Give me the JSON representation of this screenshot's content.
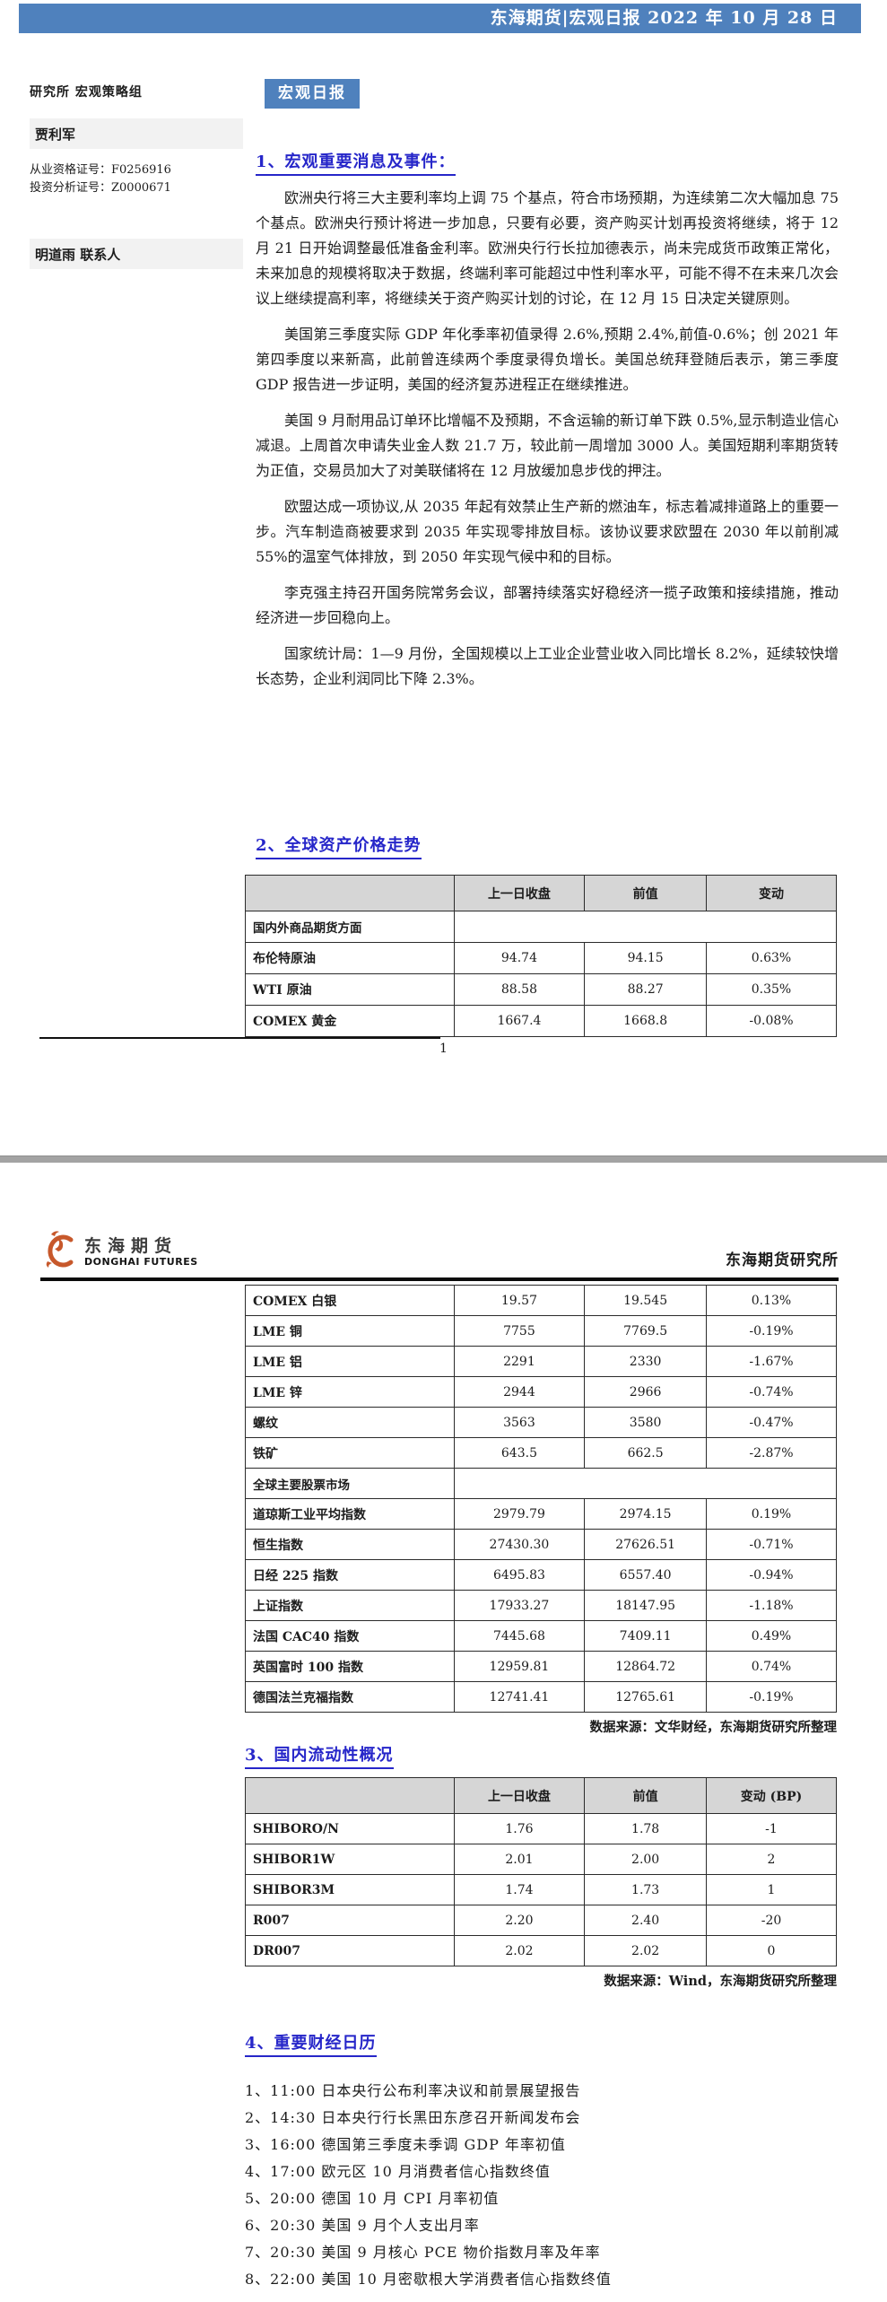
{
  "topbar": {
    "title": "东海期货|宏观日报 2022 年 10 月 28 日"
  },
  "badge": {
    "label": "宏观日报"
  },
  "sidebar": {
    "dept_line": "研究所  宏观策略组",
    "analyst": "贾利军",
    "cert1": "从业资格证号：F0256916",
    "cert2": "投资分析证号：Z0000671",
    "contact": "明道雨  联系人"
  },
  "sections": {
    "s1": {
      "title": "1、宏观重要消息及事件：",
      "paragraphs": [
        "欧洲央行将三大主要利率均上调 75 个基点，符合市场预期，为连续第二次大幅加息 75 个基点。欧洲央行预计将进一步加息，只要有必要，资产购买计划再投资将继续，将于 12 月 21 日开始调整最低准备金利率。欧洲央行行长拉加德表示，尚未完成货币政策正常化，未来加息的规模将取决于数据，终端利率可能超过中性利率水平，可能不得不在未来几次会议上继续提高利率，将继续关于资产购买计划的讨论，在 12 月 15 日决定关键原则。",
        "美国第三季度实际 GDP 年化季率初值录得 2.6%,预期 2.4%,前值-0.6%；创 2021 年第四季度以来新高，此前曾连续两个季度录得负增长。美国总统拜登随后表示，第三季度 GDP 报告进一步证明，美国的经济复苏进程正在继续推进。",
        "美国 9 月耐用品订单环比增幅不及预期，不含运输的新订单下跌 0.5%,显示制造业信心减退。上周首次申请失业金人数 21.7 万，较此前一周增加 3000 人。美国短期利率期货转为正值，交易员加大了对美联储将在 12 月放缓加息步伐的押注。",
        "欧盟达成一项协议,从 2035 年起有效禁止生产新的燃油车，标志着减排道路上的重要一步。汽车制造商被要求到 2035 年实现零排放目标。该协议要求欧盟在 2030 年以前削减 55%的温室气体排放，到 2050 年实现气候中和的目标。",
        "李克强主持召开国务院常务会议，部署持续落实好稳经济一揽子政策和接续措施，推动经济进一步回稳向上。",
        "国家统计局：1—9 月份，全国规模以上工业企业营业收入同比增长 8.2%，延续较快增长态势，企业利润同比下降 2.3%。"
      ]
    },
    "s2": {
      "title": "2、全球资产价格走势"
    },
    "s3": {
      "title": "3、国内流动性概况"
    },
    "s4": {
      "title": "4、重要财经日历",
      "items": [
        "1、11:00  日本央行公布利率决议和前景展望报告",
        "2、14:30  日本央行行长黑田东彦召开新闻发布会",
        "3、16:00  德国第三季度未季调 GDP 年率初值",
        "4、17:00  欧元区 10 月消费者信心指数终值",
        "5、20:00  德国 10 月 CPI 月率初值",
        "6、20:30  美国 9 月个人支出月率",
        "7、20:30  美国 9 月核心 PCE 物价指数月率及年率",
        "8、22:00  美国 10 月密歇根大学消费者信心指数终值"
      ]
    }
  },
  "tables": {
    "global_assets_p1": {
      "headers": [
        "",
        "上一日收盘",
        "前值",
        "变动"
      ],
      "rows": [
        {
          "section": "国内外商品期货方面"
        },
        {
          "label": "布伦特原油",
          "values": [
            "94.74",
            "94.15",
            "0.63%"
          ]
        },
        {
          "label": "WTI 原油",
          "values": [
            "88.58",
            "88.27",
            "0.35%"
          ]
        },
        {
          "label": "COMEX 黄金",
          "values": [
            "1667.4",
            "1668.8",
            "-0.08%"
          ]
        }
      ]
    },
    "global_assets_p2": {
      "rows": [
        {
          "label": "COMEX 白银",
          "values": [
            "19.57",
            "19.545",
            "0.13%"
          ]
        },
        {
          "label": "LME 铜",
          "values": [
            "7755",
            "7769.5",
            "-0.19%"
          ]
        },
        {
          "label": "LME 铝",
          "values": [
            "2291",
            "2330",
            "-1.67%"
          ]
        },
        {
          "label": "LME 锌",
          "values": [
            "2944",
            "2966",
            "-0.74%"
          ]
        },
        {
          "label": "螺纹",
          "values": [
            "3563",
            "3580",
            "-0.47%"
          ]
        },
        {
          "label": "铁矿",
          "values": [
            "643.5",
            "662.5",
            "-2.87%"
          ]
        },
        {
          "section": "全球主要股票市场"
        },
        {
          "label": "道琼斯工业平均指数",
          "values": [
            "2979.79",
            "2974.15",
            "0.19%"
          ]
        },
        {
          "label": "恒生指数",
          "values": [
            "27430.30",
            "27626.51",
            "-0.71%"
          ]
        },
        {
          "label": "日经 225 指数",
          "values": [
            "6495.83",
            "6557.40",
            "-0.94%"
          ]
        },
        {
          "label": "上证指数",
          "values": [
            "17933.27",
            "18147.95",
            "-1.18%"
          ]
        },
        {
          "label": "法国 CAC40 指数",
          "values": [
            "7445.68",
            "7409.11",
            "0.49%"
          ]
        },
        {
          "label": "英国富时 100 指数",
          "values": [
            "12959.81",
            "12864.72",
            "0.74%"
          ]
        },
        {
          "label": "德国法兰克福指数",
          "values": [
            "12741.41",
            "12765.61",
            "-0.19%"
          ]
        }
      ]
    },
    "liquidity": {
      "headers": [
        "",
        "上一日收盘",
        "前值",
        "变动 (BP)"
      ],
      "rows": [
        {
          "label": "SHIBORO/N",
          "values": [
            "1.76",
            "1.78",
            "-1"
          ]
        },
        {
          "label": "SHIBOR1W",
          "values": [
            "2.01",
            "2.00",
            "2"
          ]
        },
        {
          "label": "SHIBOR3M",
          "values": [
            "1.74",
            "1.73",
            "1"
          ]
        },
        {
          "label": "R007",
          "values": [
            "2.20",
            "2.40",
            "-20"
          ]
        },
        {
          "label": "DR007",
          "values": [
            "2.02",
            "2.02",
            "0"
          ]
        }
      ]
    }
  },
  "captions": {
    "assets": "数据来源：文华财经，东海期货研究所整理",
    "liquidity": "数据来源：Wind，东海期货研究所整理"
  },
  "page2header": {
    "logo_cn": "东海期货",
    "logo_en": "DONGHAI FUTURES",
    "institute": "东海期货研究所"
  },
  "footer": {
    "page_number": "1"
  },
  "colors": {
    "accent_blue": "#4F81BD",
    "heading_blue": "#2626C9",
    "logo_orange": "#C7582B",
    "table_header_gray": "#D6D6D6",
    "separator_gray": "#A3A3A3"
  }
}
